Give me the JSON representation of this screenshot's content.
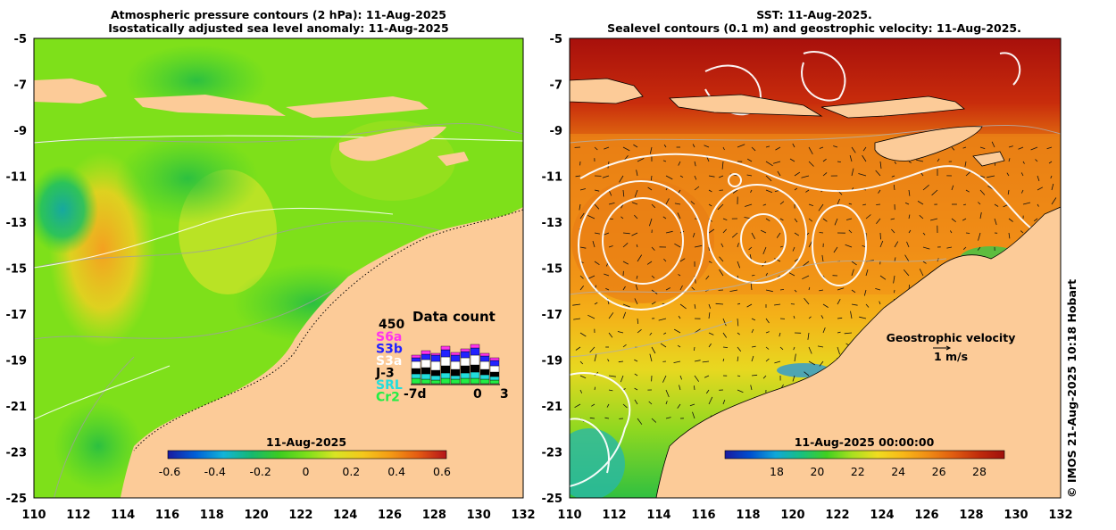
{
  "left_panel": {
    "title_line1": "Atmospheric pressure contours (2 hPa): 11-Aug-2025",
    "title_line2": "Isostatically adjusted sea level anomaly: 11-Aug-2025",
    "colorbar": {
      "title": "11-Aug-2025",
      "ticks": [
        "-0.6",
        "-0.4",
        "-0.2",
        "0",
        "0.2",
        "0.4",
        "0.6"
      ],
      "colors": [
        "#1a1aa0",
        "#0060d8",
        "#12b4d8",
        "#16b870",
        "#3ccc20",
        "#7ee01a",
        "#d8e424",
        "#f4c81c",
        "#f49a14",
        "#e45a12",
        "#b4141a"
      ]
    },
    "data_count": {
      "title": "Data count",
      "max_label": "450",
      "missions": [
        {
          "label": "S6a",
          "color": "#ff33ee"
        },
        {
          "label": "S3b",
          "color": "#2222ff"
        },
        {
          "label": "S3a",
          "color": "#ffffff"
        },
        {
          "label": "J-3",
          "color": "#000000"
        },
        {
          "label": "SRL",
          "color": "#22dddd"
        },
        {
          "label": "Cr2",
          "color": "#22ee44"
        }
      ],
      "x_labels": [
        "-7d",
        "0",
        "3"
      ]
    }
  },
  "right_panel": {
    "title_line1": "SST: 11-Aug-2025.",
    "title_line2": "Sealevel contours (0.1 m) and geostrophic velocity: 11-Aug-2025.",
    "colorbar": {
      "title": "11-Aug-2025 00:00:00",
      "ticks": [
        "18",
        "20",
        "22",
        "24",
        "26",
        "28"
      ],
      "colors": [
        "#1a1aa0",
        "#0050d0",
        "#10a8d8",
        "#18c080",
        "#40d020",
        "#a8e020",
        "#f0dc20",
        "#f8b818",
        "#f08c14",
        "#e05c10",
        "#c02c0c",
        "#a0100c"
      ]
    },
    "velocity_legend": {
      "title": "Geostrophic velocity",
      "scale": "1 m/s"
    }
  },
  "axes": {
    "lat_labels": [
      "-5",
      "-7",
      "-9",
      "-11",
      "-13",
      "-15",
      "-17",
      "-19",
      "-21",
      "-23",
      "-25"
    ],
    "lon_labels": [
      "110",
      "112",
      "114",
      "116",
      "118",
      "120",
      "122",
      "124",
      "126",
      "128",
      "130",
      "132"
    ]
  },
  "credit": "© IMOS 21-Aug-2025 10:18 Hobart",
  "colors": {
    "land": "#fccb98",
    "ocean_left": "#7ee01a",
    "ocean_right": "#f0a018"
  }
}
